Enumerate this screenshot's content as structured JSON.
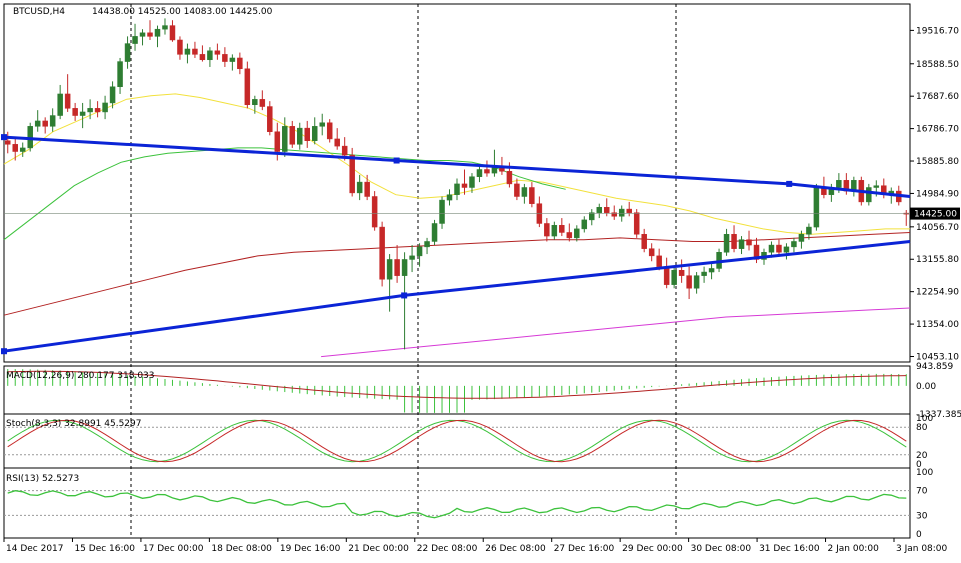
{
  "header": {
    "symbol": "BTCUSD,H4",
    "ohlc": "14438.00 14525.00 14083.00 14425.00"
  },
  "current_price_label": "14425.00",
  "macd": {
    "label": "MACD(12,26,9) 280.177 318.033",
    "ticks": [
      "943.859",
      "0.00",
      "-1337.385"
    ]
  },
  "stoch": {
    "label": "Stoch(8,3,3) 32.8991 45.5297",
    "ticks": [
      "100",
      "80",
      "20",
      "0"
    ]
  },
  "rsi": {
    "label": "RSI(13) 52.5273",
    "ticks": [
      "100",
      "70",
      "30",
      "0"
    ]
  },
  "colors": {
    "bull": "#2e7d32",
    "bear": "#c62828",
    "ma_yellow": "#f2e13c",
    "ma_green": "#3cc23c",
    "ma_red": "#b22222",
    "ma_magenta": "#d63ad6",
    "trendline": "#0b24d6",
    "grid": "#000000"
  },
  "chart_data": {
    "type": "candlestick",
    "symbol": "BTCUSD",
    "timeframe": "H4",
    "y_ticks": [
      19516.7,
      18588.5,
      17687.6,
      16786.7,
      15885.8,
      14984.9,
      14056.7,
      13155.8,
      12254.9,
      11354.0,
      10453.1
    ],
    "ylim": [
      10300,
      20250
    ],
    "x_labels": [
      "14 Dec 2017",
      "15 Dec 16:00",
      "17 Dec 00:00",
      "18 Dec 08:00",
      "19 Dec 16:00",
      "21 Dec 00:00",
      "22 Dec 08:00",
      "26 Dec 08:00",
      "27 Dec 16:00",
      "29 Dec 00:00",
      "30 Dec 08:00",
      "31 Dec 16:00",
      "2 Jan 00:00",
      "3 Jan 08:00"
    ],
    "current_price": 14425.0,
    "candles": [
      [
        16450,
        16700,
        16100,
        16350
      ],
      [
        16350,
        16550,
        15900,
        16150
      ],
      [
        16150,
        16400,
        16000,
        16250
      ],
      [
        16250,
        16950,
        16150,
        16850
      ],
      [
        16850,
        17300,
        16700,
        17000
      ],
      [
        17000,
        17100,
        16650,
        16850
      ],
      [
        16850,
        17350,
        16700,
        17150
      ],
      [
        17150,
        18000,
        17050,
        17750
      ],
      [
        17750,
        18300,
        17250,
        17350
      ],
      [
        17350,
        17500,
        17000,
        17150
      ],
      [
        17150,
        17500,
        16800,
        17250
      ],
      [
        17250,
        17600,
        17050,
        17350
      ],
      [
        17350,
        17550,
        17100,
        17250
      ],
      [
        17250,
        17700,
        17050,
        17500
      ],
      [
        17500,
        18100,
        17350,
        17950
      ],
      [
        17950,
        18750,
        17750,
        18650
      ],
      [
        18650,
        19350,
        18450,
        19150
      ],
      [
        19150,
        19700,
        18950,
        19350
      ],
      [
        19350,
        19550,
        19100,
        19450
      ],
      [
        19450,
        19800,
        19250,
        19350
      ],
      [
        19350,
        19650,
        19050,
        19550
      ],
      [
        19550,
        19850,
        19400,
        19650
      ],
      [
        19650,
        19800,
        19200,
        19250
      ],
      [
        19250,
        19350,
        18700,
        18850
      ],
      [
        18850,
        19150,
        18600,
        19000
      ],
      [
        19000,
        19200,
        18750,
        18850
      ],
      [
        18850,
        19100,
        18650,
        18700
      ],
      [
        18700,
        19050,
        18500,
        18950
      ],
      [
        18950,
        19150,
        18700,
        18850
      ],
      [
        18850,
        19050,
        18500,
        18650
      ],
      [
        18650,
        18850,
        18400,
        18750
      ],
      [
        18750,
        18900,
        18300,
        18450
      ],
      [
        18450,
        18650,
        17350,
        17450
      ],
      [
        17450,
        17700,
        17200,
        17600
      ],
      [
        17600,
        17850,
        17300,
        17400
      ],
      [
        17400,
        17550,
        16600,
        16700
      ],
      [
        16700,
        16950,
        15900,
        16150
      ],
      [
        16150,
        17100,
        16000,
        16850
      ],
      [
        16850,
        17000,
        16250,
        16350
      ],
      [
        16350,
        16950,
        16200,
        16800
      ],
      [
        16800,
        17000,
        16250,
        16450
      ],
      [
        16450,
        17100,
        16350,
        16850
      ],
      [
        16850,
        17200,
        16600,
        16950
      ],
      [
        16950,
        17050,
        16400,
        16500
      ],
      [
        16500,
        16800,
        16200,
        16300
      ],
      [
        16300,
        16550,
        15900,
        16050
      ],
      [
        16050,
        16250,
        14900,
        15000
      ],
      [
        15000,
        15500,
        14800,
        15300
      ],
      [
        15300,
        15500,
        14800,
        14900
      ],
      [
        14900,
        15050,
        13950,
        14050
      ],
      [
        14050,
        14200,
        12400,
        12600
      ],
      [
        12600,
        13300,
        11700,
        13150
      ],
      [
        13150,
        13550,
        12500,
        12700
      ],
      [
        12700,
        13350,
        10650,
        13150
      ],
      [
        13150,
        13550,
        12800,
        13250
      ],
      [
        13250,
        13600,
        12950,
        13500
      ],
      [
        13500,
        13750,
        13300,
        13650
      ],
      [
        13650,
        14250,
        13550,
        14150
      ],
      [
        14150,
        14900,
        14000,
        14800
      ],
      [
        14800,
        15100,
        14650,
        14950
      ],
      [
        14950,
        15400,
        14800,
        15250
      ],
      [
        15250,
        15650,
        14950,
        15150
      ],
      [
        15150,
        15550,
        15000,
        15450
      ],
      [
        15450,
        15750,
        15300,
        15650
      ],
      [
        15650,
        15900,
        15450,
        15550
      ],
      [
        15550,
        16200,
        15450,
        15750
      ],
      [
        15750,
        16000,
        15500,
        15600
      ],
      [
        15600,
        15850,
        15150,
        15250
      ],
      [
        15250,
        15400,
        14800,
        14900
      ],
      [
        14900,
        15250,
        14700,
        15150
      ],
      [
        15150,
        15300,
        14600,
        14700
      ],
      [
        14700,
        14900,
        14050,
        14150
      ],
      [
        14150,
        14300,
        13650,
        13800
      ],
      [
        13800,
        14200,
        13700,
        14100
      ],
      [
        14100,
        14300,
        13800,
        13900
      ],
      [
        13900,
        14150,
        13650,
        13750
      ],
      [
        13750,
        14100,
        13650,
        14000
      ],
      [
        14000,
        14350,
        13900,
        14250
      ],
      [
        14250,
        14550,
        14100,
        14450
      ],
      [
        14450,
        14700,
        14300,
        14600
      ],
      [
        14600,
        14850,
        14350,
        14450
      ],
      [
        14450,
        14650,
        14250,
        14350
      ],
      [
        14350,
        14650,
        14200,
        14550
      ],
      [
        14550,
        14750,
        14350,
        14450
      ],
      [
        14450,
        14550,
        13750,
        13850
      ],
      [
        13850,
        14000,
        13350,
        13450
      ],
      [
        13450,
        13600,
        13100,
        13250
      ],
      [
        13250,
        13450,
        12850,
        12950
      ],
      [
        12950,
        13200,
        12350,
        12450
      ],
      [
        12450,
        12950,
        12350,
        12850
      ],
      [
        12850,
        13150,
        12500,
        12700
      ],
      [
        12700,
        12950,
        12050,
        12350
      ],
      [
        12350,
        12800,
        12200,
        12700
      ],
      [
        12700,
        12950,
        12500,
        12800
      ],
      [
        12800,
        13050,
        12600,
        12900
      ],
      [
        12900,
        13450,
        12800,
        13350
      ],
      [
        13350,
        14000,
        13250,
        13850
      ],
      [
        13850,
        14100,
        13350,
        13450
      ],
      [
        13450,
        13800,
        13300,
        13700
      ],
      [
        13700,
        13950,
        13400,
        13550
      ],
      [
        13550,
        13750,
        13050,
        13150
      ],
      [
        13150,
        13450,
        13000,
        13350
      ],
      [
        13350,
        13650,
        13200,
        13550
      ],
      [
        13550,
        13700,
        13250,
        13350
      ],
      [
        13350,
        13600,
        13150,
        13500
      ],
      [
        13500,
        13750,
        13350,
        13650
      ],
      [
        13650,
        13950,
        13450,
        13850
      ],
      [
        13850,
        14150,
        13700,
        14050
      ],
      [
        14050,
        15250,
        13950,
        15150
      ],
      [
        15150,
        15450,
        14850,
        14950
      ],
      [
        14950,
        15250,
        14750,
        15150
      ],
      [
        15150,
        15550,
        15000,
        15350
      ],
      [
        15350,
        15550,
        14950,
        15050
      ],
      [
        15050,
        15450,
        14900,
        15350
      ],
      [
        15350,
        15450,
        14650,
        14750
      ],
      [
        14750,
        15250,
        14650,
        15150
      ],
      [
        15150,
        15350,
        14900,
        15200
      ],
      [
        15200,
        15400,
        14850,
        14950
      ],
      [
        14950,
        15150,
        14700,
        15050
      ],
      [
        15050,
        15200,
        14650,
        14750
      ],
      [
        14438,
        14525,
        14083,
        14425
      ]
    ],
    "indicators": [
      {
        "type": "ma",
        "color": "yellow",
        "values": [
          15800,
          16200,
          16700,
          17000,
          17300,
          17600,
          17700,
          17750,
          17650,
          17500,
          17350,
          17050,
          16700,
          16250,
          15800,
          15300,
          14950,
          14850,
          14900,
          15050,
          15200,
          15350,
          15300,
          15150,
          15000,
          14850,
          14750,
          14650,
          14500,
          14300,
          14150,
          14000,
          13900,
          13850,
          13900,
          13950,
          14000,
          14000
        ]
      },
      {
        "type": "ma",
        "color": "green",
        "values": [
          13700,
          14200,
          14700,
          15200,
          15550,
          15850,
          16000,
          16100,
          16150,
          16200,
          16250,
          16250,
          16200,
          16150,
          16100,
          16050,
          16000,
          15950,
          15900,
          15900,
          15850,
          15700,
          15450,
          15250,
          15100
        ]
      },
      {
        "type": "ma",
        "color": "red",
        "values": [
          11600,
          11850,
          12100,
          12350,
          12600,
          12850,
          13050,
          13250,
          13350,
          13400,
          13450,
          13500,
          13550,
          13600,
          13650,
          13700,
          13700,
          13750,
          13700,
          13650,
          13650,
          13700,
          13750,
          13800,
          13850,
          13900
        ]
      },
      {
        "type": "ma",
        "color": "magenta",
        "values": [
          10450,
          10550,
          10650,
          10750,
          10850,
          10950,
          11050,
          11150,
          11250,
          11350,
          11450,
          11550,
          11600,
          11650,
          11700,
          11750,
          11800
        ]
      }
    ],
    "trendlines": [
      {
        "name": "upper",
        "points": [
          [
            0,
            16550
          ],
          [
            52,
            15900
          ],
          [
            104,
            15250
          ],
          [
            120,
            14900
          ]
        ]
      },
      {
        "name": "lower",
        "points": [
          [
            0,
            10600
          ],
          [
            53,
            12150
          ],
          [
            120,
            13650
          ]
        ]
      }
    ],
    "subpanels": {
      "macd": {
        "ylim": [
          -1337.385,
          943.859
        ]
      },
      "stoch": {
        "ylim": [
          0,
          100
        ],
        "levels": [
          80,
          20
        ]
      },
      "rsi": {
        "ylim": [
          0,
          100
        ],
        "levels": [
          70,
          30
        ]
      }
    }
  }
}
